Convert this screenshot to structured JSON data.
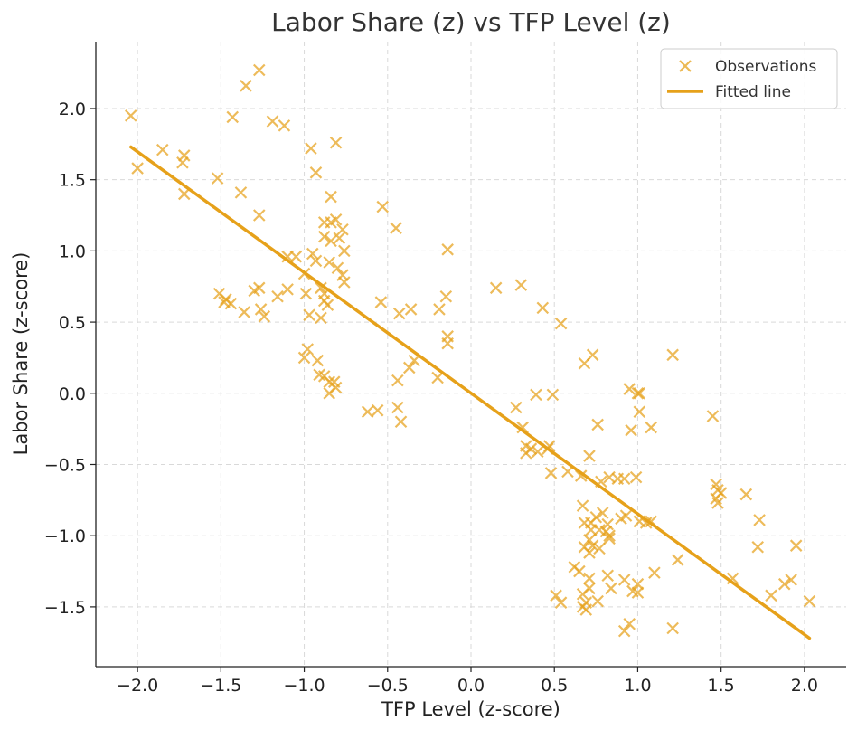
{
  "chart_data": {
    "type": "scatter",
    "title": "Labor Share (z) vs TFP Level (z)",
    "xlabel": "TFP Level (z-score)",
    "ylabel": "Labor Share (z-score)",
    "xlim": [
      -2.25,
      2.25
    ],
    "ylim": [
      -1.92,
      2.47
    ],
    "xticks": [
      -2.0,
      -1.5,
      -1.0,
      -0.5,
      0.0,
      0.5,
      1.0,
      1.5,
      2.0
    ],
    "xtick_labels": [
      "−2.0",
      "−1.5",
      "−1.0",
      "−0.5",
      "0.0",
      "0.5",
      "1.0",
      "1.5",
      "2.0"
    ],
    "yticks": [
      -1.5,
      -1.0,
      -0.5,
      0.0,
      0.5,
      1.0,
      1.5,
      2.0
    ],
    "ytick_labels": [
      "−1.5",
      "−1.0",
      "−0.5",
      "0.0",
      "0.5",
      "1.0",
      "1.5",
      "2.0"
    ],
    "grid": true,
    "legend_position": "top-right",
    "series": [
      {
        "name": "Observations",
        "kind": "scatter",
        "marker": "x",
        "color": "#E6A11A",
        "points": [
          [
            -2.04,
            1.95
          ],
          [
            -2.0,
            1.58
          ],
          [
            -1.85,
            1.71
          ],
          [
            -1.73,
            1.62
          ],
          [
            -1.72,
            1.67
          ],
          [
            -1.72,
            1.4
          ],
          [
            -1.52,
            1.51
          ],
          [
            -1.38,
            1.41
          ],
          [
            -1.43,
            1.94
          ],
          [
            -1.35,
            2.16
          ],
          [
            -1.27,
            2.27
          ],
          [
            -1.27,
            1.25
          ],
          [
            -1.19,
            1.91
          ],
          [
            -1.12,
            1.88
          ],
          [
            -0.96,
            1.72
          ],
          [
            -0.81,
            1.76
          ],
          [
            -0.93,
            1.55
          ],
          [
            -0.84,
            1.38
          ],
          [
            -0.84,
            1.2
          ],
          [
            -0.88,
            1.2
          ],
          [
            -0.81,
            1.22
          ],
          [
            -0.77,
            1.15
          ],
          [
            -0.88,
            1.1
          ],
          [
            -0.84,
            1.07
          ],
          [
            -0.79,
            1.09
          ],
          [
            -0.76,
            1.0
          ],
          [
            -0.95,
            0.98
          ],
          [
            -0.93,
            0.93
          ],
          [
            -0.85,
            0.92
          ],
          [
            -0.8,
            0.88
          ],
          [
            -0.77,
            0.83
          ],
          [
            -0.76,
            0.78
          ],
          [
            -1.1,
            0.96
          ],
          [
            -1.05,
            0.96
          ],
          [
            -1.0,
            0.84
          ],
          [
            -0.9,
            0.74
          ],
          [
            -0.88,
            0.7
          ],
          [
            -0.86,
            0.62
          ],
          [
            -0.88,
            0.65
          ],
          [
            -0.99,
            0.7
          ],
          [
            -0.97,
            0.55
          ],
          [
            -0.9,
            0.53
          ],
          [
            -1.1,
            0.73
          ],
          [
            -1.16,
            0.68
          ],
          [
            -1.27,
            0.74
          ],
          [
            -1.3,
            0.72
          ],
          [
            -1.26,
            0.59
          ],
          [
            -1.24,
            0.54
          ],
          [
            -1.36,
            0.57
          ],
          [
            -1.48,
            0.64
          ],
          [
            -1.44,
            0.63
          ],
          [
            -1.51,
            0.7
          ],
          [
            -1.47,
            0.66
          ],
          [
            -0.98,
            0.31
          ],
          [
            -1.0,
            0.25
          ],
          [
            -0.92,
            0.23
          ],
          [
            -0.91,
            0.13
          ],
          [
            -0.88,
            0.12
          ],
          [
            -0.85,
            0.08
          ],
          [
            -0.82,
            0.08
          ],
          [
            -0.81,
            0.04
          ],
          [
            -0.85,
            0.0
          ],
          [
            -0.62,
            -0.13
          ],
          [
            -0.56,
            -0.12
          ],
          [
            -0.44,
            -0.1
          ],
          [
            -0.42,
            -0.2
          ],
          [
            -0.54,
            0.64
          ],
          [
            -0.53,
            1.31
          ],
          [
            -0.45,
            1.16
          ],
          [
            -0.43,
            0.56
          ],
          [
            -0.36,
            0.59
          ],
          [
            -0.44,
            0.09
          ],
          [
            -0.37,
            0.18
          ],
          [
            -0.34,
            0.23
          ],
          [
            -0.2,
            0.11
          ],
          [
            -0.19,
            0.59
          ],
          [
            -0.15,
            0.68
          ],
          [
            -0.14,
            0.4
          ],
          [
            -0.14,
            0.35
          ],
          [
            -0.14,
            1.01
          ],
          [
            0.15,
            0.74
          ],
          [
            0.3,
            0.76
          ],
          [
            0.43,
            0.6
          ],
          [
            0.54,
            0.49
          ],
          [
            0.27,
            -0.1
          ],
          [
            0.31,
            -0.24
          ],
          [
            0.33,
            -0.37
          ],
          [
            0.33,
            -0.42
          ],
          [
            0.36,
            -0.39
          ],
          [
            0.39,
            -0.01
          ],
          [
            0.4,
            -0.41
          ],
          [
            0.46,
            -0.39
          ],
          [
            0.47,
            -0.37
          ],
          [
            0.48,
            -0.56
          ],
          [
            0.49,
            -0.01
          ],
          [
            0.58,
            -0.55
          ],
          [
            0.68,
            0.21
          ],
          [
            0.73,
            0.27
          ],
          [
            0.71,
            -0.44
          ],
          [
            0.66,
            -0.58
          ],
          [
            0.76,
            -0.22
          ],
          [
            0.78,
            -0.62
          ],
          [
            0.83,
            -0.59
          ],
          [
            0.88,
            -0.6
          ],
          [
            0.92,
            -0.6
          ],
          [
            0.95,
            0.03
          ],
          [
            0.96,
            -0.26
          ],
          [
            1.0,
            0.0
          ],
          [
            1.01,
            -0.13
          ],
          [
            1.01,
            0.0
          ],
          [
            1.08,
            -0.24
          ],
          [
            1.21,
            0.27
          ],
          [
            0.99,
            -0.59
          ],
          [
            0.67,
            -0.79
          ],
          [
            0.68,
            -0.91
          ],
          [
            0.72,
            -0.91
          ],
          [
            0.75,
            -0.87
          ],
          [
            0.79,
            -0.84
          ],
          [
            0.82,
            -0.92
          ],
          [
            0.9,
            -0.88
          ],
          [
            0.93,
            -0.86
          ],
          [
            0.72,
            -0.96
          ],
          [
            0.77,
            -0.96
          ],
          [
            0.81,
            -0.97
          ],
          [
            0.83,
            -1.0
          ],
          [
            0.83,
            -1.02
          ],
          [
            0.71,
            -1.03
          ],
          [
            0.73,
            -1.07
          ],
          [
            0.68,
            -1.08
          ],
          [
            0.77,
            -1.09
          ],
          [
            0.71,
            -1.12
          ],
          [
            1.01,
            -0.9
          ],
          [
            1.05,
            -0.91
          ],
          [
            1.08,
            -0.9
          ],
          [
            1.45,
            -0.16
          ],
          [
            1.47,
            -0.64
          ],
          [
            1.48,
            -0.68
          ],
          [
            1.5,
            -0.7
          ],
          [
            1.47,
            -0.74
          ],
          [
            1.48,
            -0.77
          ],
          [
            1.65,
            -0.71
          ],
          [
            1.73,
            -0.89
          ],
          [
            1.72,
            -1.08
          ],
          [
            1.95,
            -1.07
          ],
          [
            0.62,
            -1.22
          ],
          [
            0.65,
            -1.25
          ],
          [
            0.71,
            -1.3
          ],
          [
            0.82,
            -1.28
          ],
          [
            0.92,
            -1.31
          ],
          [
            0.97,
            -1.39
          ],
          [
            1.0,
            -1.34
          ],
          [
            1.0,
            -1.4
          ],
          [
            1.1,
            -1.26
          ],
          [
            1.24,
            -1.17
          ],
          [
            1.57,
            -1.3
          ],
          [
            1.8,
            -1.42
          ],
          [
            1.88,
            -1.34
          ],
          [
            1.92,
            -1.31
          ],
          [
            2.03,
            -1.46
          ],
          [
            0.51,
            -1.42
          ],
          [
            0.54,
            -1.47
          ],
          [
            0.67,
            -1.41
          ],
          [
            0.69,
            -1.47
          ],
          [
            0.67,
            -1.5
          ],
          [
            0.69,
            -1.52
          ],
          [
            0.76,
            -1.46
          ],
          [
            0.95,
            -1.62
          ],
          [
            0.92,
            -1.67
          ],
          [
            1.21,
            -1.65
          ],
          [
            0.84,
            -1.37
          ],
          [
            0.71,
            -1.37
          ]
        ]
      },
      {
        "name": "Fitted line",
        "kind": "line",
        "color": "#E6A11A",
        "x": [
          -2.04,
          2.03
        ],
        "y": [
          1.73,
          -1.72
        ]
      }
    ]
  }
}
